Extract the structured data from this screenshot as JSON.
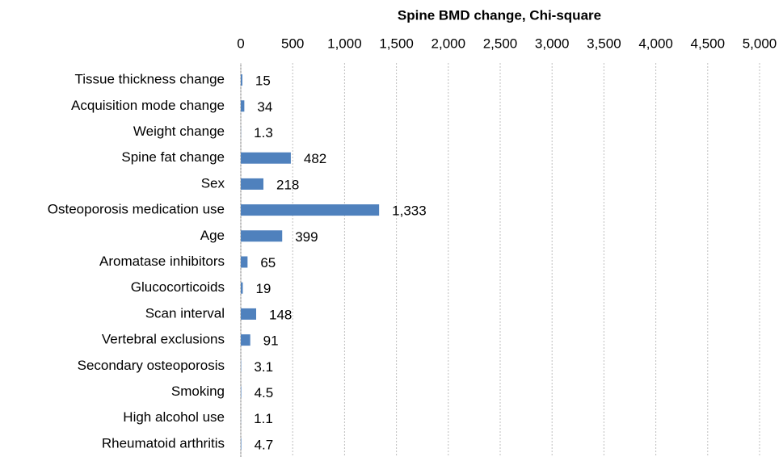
{
  "chart_data": {
    "type": "bar",
    "orientation": "horizontal",
    "title": "Spine BMD change, Chi-square",
    "categories": [
      "Tissue thickness change",
      "Acquisition mode change",
      "Weight change",
      "Spine fat change",
      "Sex",
      "Osteoporosis medication use",
      "Age",
      "Aromatase inhibitors",
      "Glucocorticoids",
      "Scan interval",
      "Vertebral exclusions",
      "Secondary osteoporosis",
      "Smoking",
      "High alcohol use",
      "Rheumatoid arthritis"
    ],
    "values": [
      15,
      34,
      1.3,
      482,
      218,
      1333,
      399,
      65,
      19,
      148,
      91,
      3.1,
      4.5,
      1.1,
      4.7
    ],
    "value_labels": [
      "15",
      "34",
      "1.3",
      "482",
      "218",
      "1,333",
      "399",
      "65",
      "19",
      "148",
      "91",
      "3.1",
      "4.5",
      "1.1",
      "4.7"
    ],
    "color": "#4f81bd",
    "xlim": [
      0,
      5000
    ],
    "xticks": [
      0,
      500,
      {
        "value": 1000,
        "label": "1,000"
      },
      {
        "value": 1500,
        "label": "1,500"
      },
      {
        "value": 2000,
        "label": "2,000"
      },
      {
        "value": 2500,
        "label": "2,500"
      },
      {
        "value": 3000,
        "label": "3,000"
      },
      {
        "value": 3500,
        "label": "3,500"
      },
      {
        "value": 4000,
        "label": "4,000"
      },
      {
        "value": 4500,
        "label": "4,500"
      },
      {
        "value": 5000,
        "label": "5,000"
      }
    ],
    "grid": true
  }
}
